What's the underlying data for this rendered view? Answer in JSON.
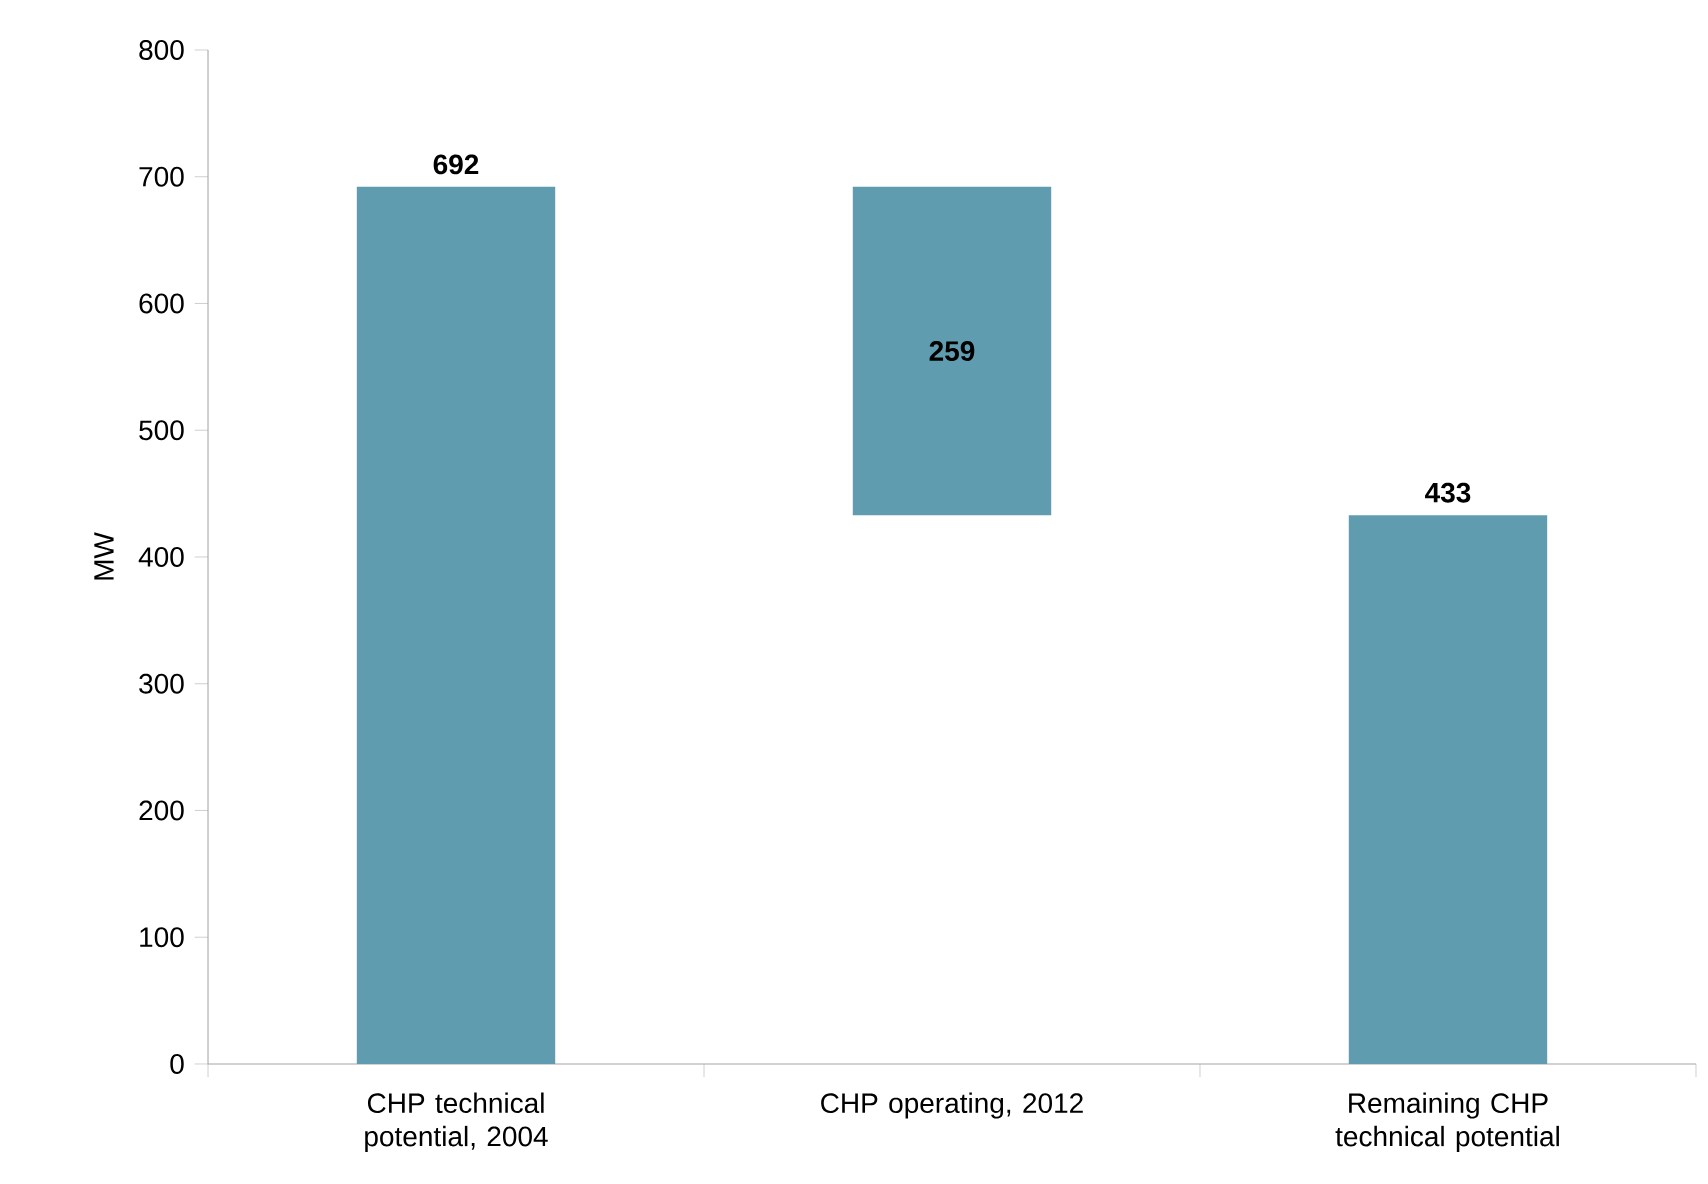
{
  "chart_data": {
    "type": "bar",
    "ylabel": "MW",
    "categories": [
      "CHP technical potential, 2004",
      "CHP operating, 2012",
      "Remaining CHP technical potential"
    ],
    "values": [
      692,
      259,
      433
    ],
    "base": [
      0,
      433,
      0
    ],
    "color": "#5f9caf",
    "ylim": [
      0,
      800
    ],
    "yticks": [
      0,
      100,
      200,
      300,
      400,
      500,
      600,
      700,
      800
    ],
    "data_labels": true,
    "grid": false
  }
}
